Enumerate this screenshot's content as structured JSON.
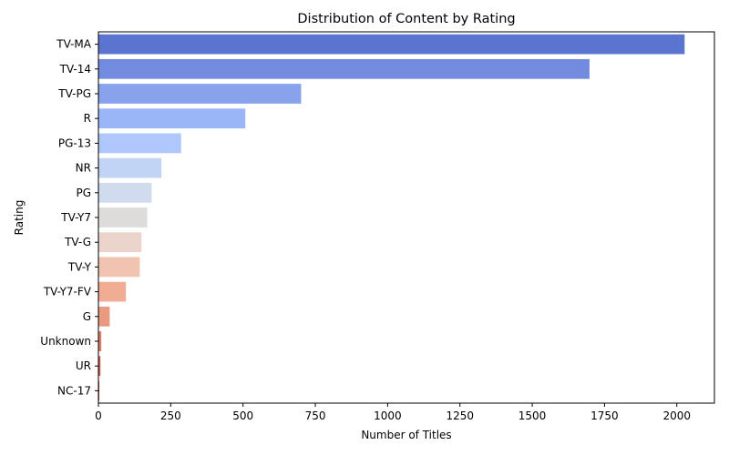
{
  "chart_data": {
    "type": "bar",
    "orientation": "horizontal",
    "title": "Distribution of Content by Rating",
    "xlabel": "Number of Titles",
    "ylabel": "Rating",
    "categories": [
      "TV-MA",
      "TV-14",
      "TV-PG",
      "R",
      "PG-13",
      "NR",
      "PG",
      "TV-Y7",
      "TV-G",
      "TV-Y",
      "TV-Y7-FV",
      "G",
      "Unknown",
      "UR",
      "NC-17"
    ],
    "values": [
      2027,
      1698,
      701,
      508,
      286,
      218,
      184,
      169,
      149,
      143,
      95,
      39,
      10,
      7,
      3
    ],
    "colors": [
      "#5b74cf",
      "#738bdf",
      "#88a3ec",
      "#9bb6f7",
      "#afc7fc",
      "#c1d4f5",
      "#d0dbed",
      "#dedcdb",
      "#ead4cb",
      "#f0c4b0",
      "#f1ad93",
      "#ea9a80",
      "#de7d66",
      "#cb5b4c",
      "#b6393c"
    ],
    "xlim": [
      0,
      2130
    ],
    "xticks": [
      0,
      250,
      500,
      750,
      1000,
      1250,
      1500,
      1750,
      2000
    ],
    "grid": false,
    "legend": "none"
  }
}
